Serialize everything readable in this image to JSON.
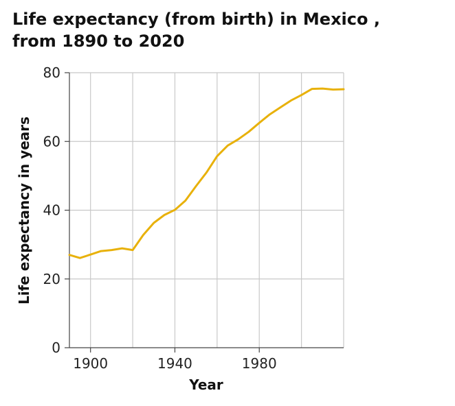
{
  "chart_data": {
    "type": "line",
    "title": "Life expectancy (from birth) in Mexico , from 1890 to 2020",
    "title_line1": "Life expectancy (from birth) in Mexico ,",
    "title_line2": "from 1890 to 2020",
    "xlabel": "Year",
    "ylabel": "Life expectancy in years",
    "xlim": [
      1890,
      2020
    ],
    "ylim": [
      0,
      80
    ],
    "x_ticks": [
      1900,
      1940,
      1980
    ],
    "x_gridlines": [
      1900,
      1920,
      1940,
      1960,
      1980,
      2000
    ],
    "y_ticks": [
      0,
      20,
      40,
      60,
      80
    ],
    "grid": true,
    "line_color": "#e8b10a",
    "series": [
      {
        "x": [
          1890,
          1895,
          1900,
          1905,
          1910,
          1915,
          1920,
          1925,
          1930,
          1935,
          1940,
          1945,
          1950,
          1955,
          1960,
          1965,
          1970,
          1975,
          1980,
          1985,
          1990,
          1995,
          2000,
          2005,
          2010,
          2015,
          2020
        ],
        "values": [
          27.0,
          26.1,
          27.1,
          28.1,
          28.4,
          28.9,
          28.4,
          32.8,
          36.3,
          38.6,
          40.1,
          42.8,
          47.0,
          51.0,
          55.7,
          58.8,
          60.6,
          62.8,
          65.4,
          67.9,
          69.9,
          71.9,
          73.5,
          75.3,
          75.4,
          75.1,
          75.2
        ]
      }
    ]
  }
}
